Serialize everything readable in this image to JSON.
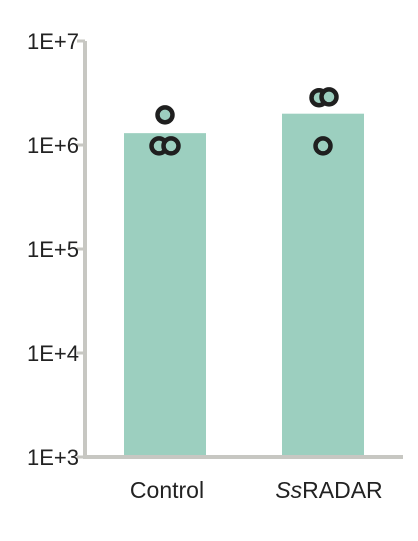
{
  "chart_data": {
    "type": "bar",
    "title": "",
    "xlabel": "",
    "ylabel": "",
    "yscale": "log",
    "ylim": [
      1000,
      10000000
    ],
    "yticks": [
      {
        "value": 1000,
        "label": "1E+3"
      },
      {
        "value": 10000,
        "label": "1E+4"
      },
      {
        "value": 100000,
        "label": "1E+5"
      },
      {
        "value": 1000000,
        "label": "1E+6"
      },
      {
        "value": 10000000,
        "label": "1E+7"
      }
    ],
    "categories": [
      {
        "prefix": "",
        "italic": "",
        "rest": "Control"
      },
      {
        "prefix": "",
        "italic": "Ss",
        "rest": "RADAR"
      }
    ],
    "values": [
      1300000,
      2000000
    ],
    "points": [
      [
        1950000,
        980000,
        980000
      ],
      [
        2850000,
        2900000,
        980000
      ]
    ],
    "grid": false,
    "legend": "none",
    "colors": {
      "bar": "#9ccfbf",
      "point_fill": "#9ccfbf",
      "point_stroke": "#1f1f1f",
      "axis": "#c7c7c2",
      "text": "#222222"
    }
  }
}
